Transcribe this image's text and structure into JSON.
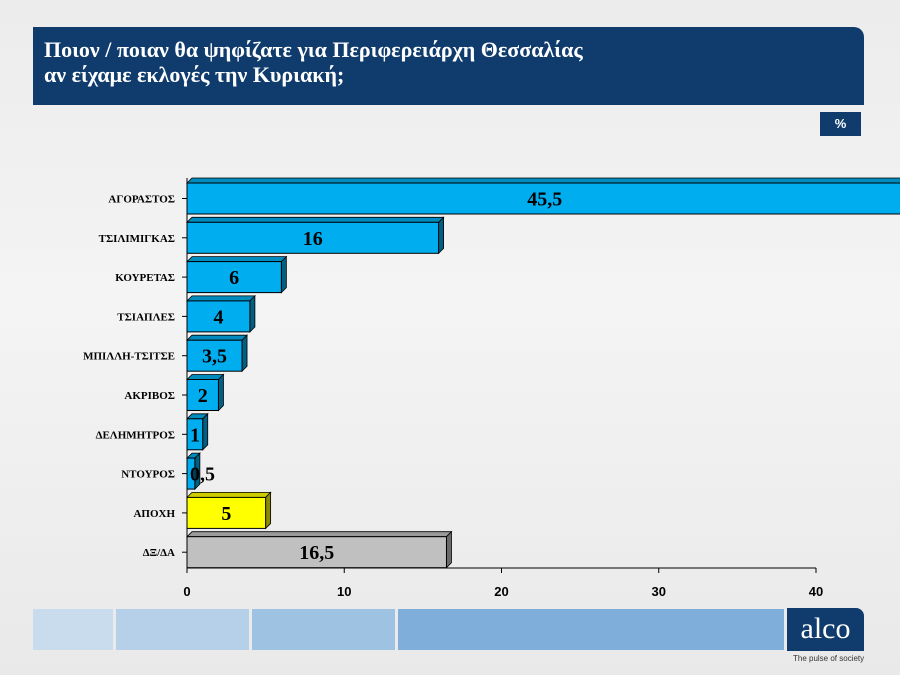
{
  "header": {
    "title_line1": "Ποιον / ποιαν θα ψηφίζατε για Περιφερειάρχη Θεσσαλίας",
    "title_line2": "αν είχαμε εκλογές την Κυριακή;"
  },
  "unit_badge": "%",
  "logo": {
    "text": "alco",
    "tagline": "The pulse of society"
  },
  "colors": {
    "header_bg": "#0f3c6c",
    "candidate_bar": "#00aeef",
    "abstention_bar": "#ffff00",
    "undecided_bar": "#c0c0c0",
    "footer_segments": [
      "#c9dcee",
      "#b6d0e9",
      "#9ec2e2",
      "#7eaed9"
    ]
  },
  "chart_data": {
    "type": "bar",
    "orientation": "horizontal",
    "style": "3d",
    "categories": [
      "ΑΓΟΡΑΣΤΟΣ",
      "ΤΣΙΛΙΜΙΓΚΑΣ",
      "ΚΟΥΡΕΤΑΣ",
      "ΤΣΙΑΠΛΕΣ",
      "ΜΠΙΛΛΗ-ΤΣΙΤΣΕ",
      "ΑΚΡΙΒΟΣ",
      "ΔΕΛΗΜΗΤΡΟΣ",
      "ΝΤΟΥΡΟΣ",
      "ΑΠΟΧΗ",
      "ΔΞ/ΔΑ"
    ],
    "values": [
      45.5,
      16,
      6,
      4,
      3.5,
      2,
      1,
      0.5,
      5,
      16.5
    ],
    "value_labels": [
      "45,5",
      "16",
      "6",
      "4",
      "3,5",
      "2",
      "1",
      "0,5",
      "5",
      "16,5"
    ],
    "bar_colors": [
      "#00aeef",
      "#00aeef",
      "#00aeef",
      "#00aeef",
      "#00aeef",
      "#00aeef",
      "#00aeef",
      "#00aeef",
      "#ffff00",
      "#c0c0c0"
    ],
    "xlim": [
      0,
      40
    ],
    "xticks": [
      0,
      10,
      20,
      30,
      40
    ],
    "grid": false,
    "legend": "none"
  }
}
